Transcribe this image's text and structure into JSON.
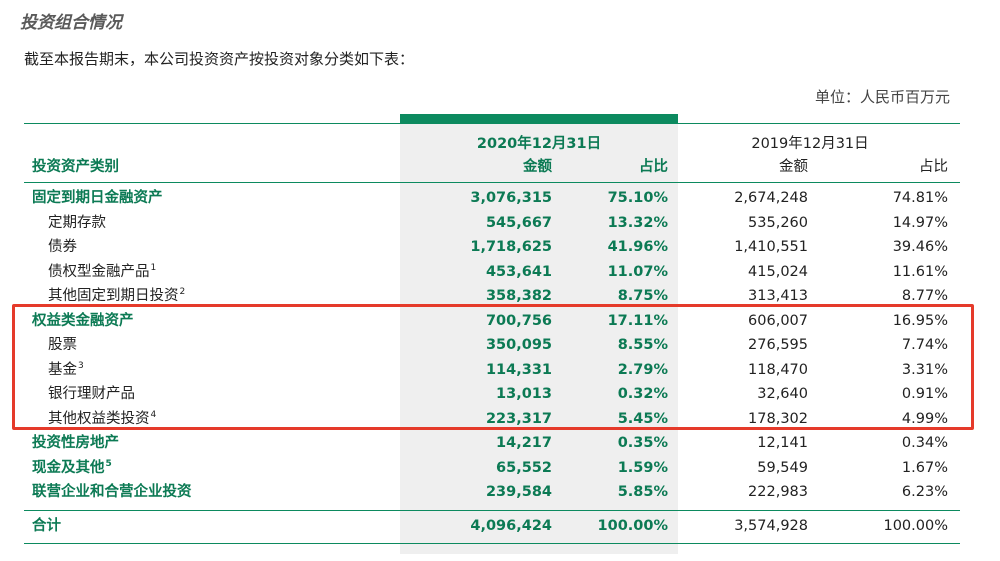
{
  "section_title": "投资组合情况",
  "intro": "截至本报告期末，本公司投资资产按投资对象分类如下表：",
  "unit": "单位：人民币百万元",
  "header": {
    "period_current": "2020年12月31日",
    "period_previous": "2019年12月31日",
    "col_category": "投资资产类别",
    "col_amount": "金额",
    "col_ratio": "占比"
  },
  "rows": [
    {
      "label": "固定到期日金融资产",
      "note": "",
      "a1": "3,076,315",
      "p1": "75.10%",
      "a2": "2,674,248",
      "p2": "74.81%"
    },
    {
      "label": "定期存款",
      "note": "",
      "a1": "545,667",
      "p1": "13.32%",
      "a2": "535,260",
      "p2": "14.97%"
    },
    {
      "label": "债券",
      "note": "",
      "a1": "1,718,625",
      "p1": "41.96%",
      "a2": "1,410,551",
      "p2": "39.46%"
    },
    {
      "label": "债权型金融产品",
      "note": "1",
      "a1": "453,641",
      "p1": "11.07%",
      "a2": "415,024",
      "p2": "11.61%"
    },
    {
      "label": "其他固定到期日投资",
      "note": "2",
      "a1": "358,382",
      "p1": "8.75%",
      "a2": "313,413",
      "p2": "8.77%"
    },
    {
      "label": "权益类金融资产",
      "note": "",
      "a1": "700,756",
      "p1": "17.11%",
      "a2": "606,007",
      "p2": "16.95%"
    },
    {
      "label": "股票",
      "note": "",
      "a1": "350,095",
      "p1": "8.55%",
      "a2": "276,595",
      "p2": "7.74%"
    },
    {
      "label": "基金",
      "note": "3",
      "a1": "114,331",
      "p1": "2.79%",
      "a2": "118,470",
      "p2": "3.31%"
    },
    {
      "label": "银行理财产品",
      "note": "",
      "a1": "13,013",
      "p1": "0.32%",
      "a2": "32,640",
      "p2": "0.91%"
    },
    {
      "label": "其他权益类投资",
      "note": "4",
      "a1": "223,317",
      "p1": "5.45%",
      "a2": "178,302",
      "p2": "4.99%"
    },
    {
      "label": "投资性房地产",
      "note": "",
      "a1": "14,217",
      "p1": "0.35%",
      "a2": "12,141",
      "p2": "0.34%"
    },
    {
      "label": "现金及其他",
      "note": "5",
      "a1": "65,552",
      "p1": "1.59%",
      "a2": "59,549",
      "p2": "1.67%"
    },
    {
      "label": "联营企业和合营企业投资",
      "note": "",
      "a1": "239,584",
      "p1": "5.85%",
      "a2": "222,983",
      "p2": "6.23%"
    }
  ],
  "total": {
    "label": "合计",
    "a1": "4,096,424",
    "p1": "100.00%",
    "a2": "3,574,928",
    "p2": "100.00%"
  },
  "colors": {
    "accent": "#0c8a5f",
    "highlight_box": "#e53a2a",
    "shade": "#efefef"
  }
}
